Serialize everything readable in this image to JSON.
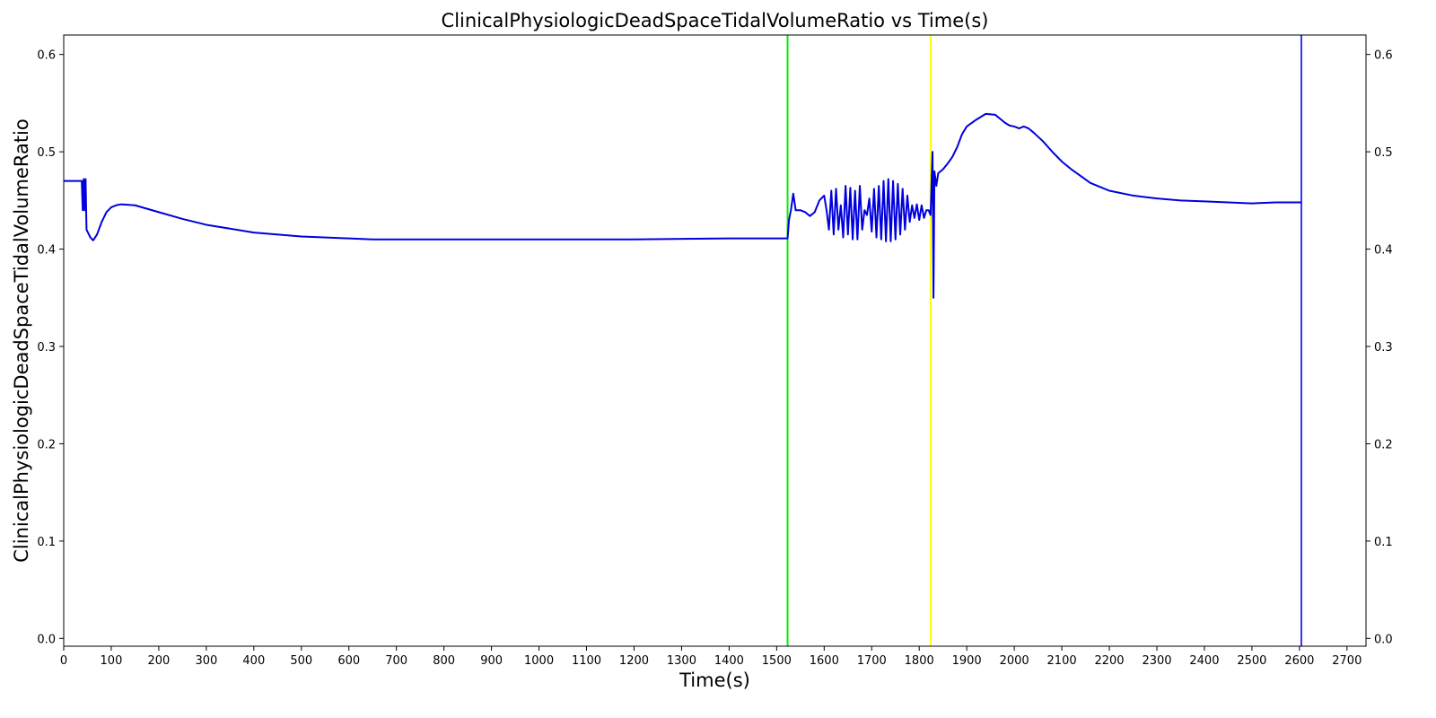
{
  "chart_data": {
    "type": "line",
    "title": "ClinicalPhysiologicDeadSpaceTidalVolumeRatio vs Time(s)",
    "xlabel": "Time(s)",
    "ylabel": "ClinicalPhysiologicDeadSpaceTidalVolumeRatio",
    "xlim": [
      0,
      2740
    ],
    "ylim": [
      -0.008,
      0.62
    ],
    "x_ticks": [
      0,
      100,
      200,
      300,
      400,
      500,
      600,
      700,
      800,
      900,
      1000,
      1100,
      1200,
      1300,
      1400,
      1500,
      1600,
      1700,
      1800,
      1900,
      2000,
      2100,
      2200,
      2300,
      2400,
      2500,
      2600,
      2700
    ],
    "y_ticks": [
      0.0,
      0.1,
      0.2,
      0.3,
      0.4,
      0.5,
      0.6
    ],
    "y_tick_labels": [
      "0.0",
      "0.1",
      "0.2",
      "0.3",
      "0.4",
      "0.5",
      "0.6"
    ],
    "right_axis_mirror": true,
    "grid": false,
    "series_color": "#0000dd",
    "vertical_markers": [
      {
        "x": 1523,
        "color": "#00ee00"
      },
      {
        "x": 1824,
        "color": "#ffff00"
      },
      {
        "x": 2604,
        "color": "#3333ff"
      }
    ],
    "series": [
      {
        "x": [
          0,
          38,
          40,
          42,
          44,
          46,
          48,
          52,
          56,
          62,
          70,
          80,
          90,
          100,
          110,
          120,
          150,
          200,
          250,
          300,
          400,
          500,
          600,
          650,
          800,
          1000,
          1200,
          1400,
          1500,
          1520,
          1523,
          1526,
          1530,
          1535,
          1540,
          1550,
          1560,
          1570,
          1580,
          1590,
          1600,
          1605,
          1610,
          1615,
          1620,
          1625,
          1630,
          1635,
          1640,
          1645,
          1650,
          1655,
          1660,
          1665,
          1670,
          1675,
          1680,
          1685,
          1690,
          1695,
          1700,
          1705,
          1710,
          1715,
          1720,
          1725,
          1730,
          1735,
          1740,
          1745,
          1750,
          1755,
          1760,
          1765,
          1770,
          1775,
          1780,
          1785,
          1790,
          1795,
          1800,
          1805,
          1810,
          1815,
          1820,
          1822,
          1824,
          1826,
          1828,
          1830,
          1832,
          1836,
          1840,
          1850,
          1860,
          1870,
          1880,
          1890,
          1900,
          1920,
          1940,
          1960,
          1970,
          1980,
          1990,
          2000,
          2010,
          2020,
          2030,
          2040,
          2060,
          2080,
          2100,
          2120,
          2140,
          2160,
          2180,
          2200,
          2250,
          2300,
          2350,
          2400,
          2450,
          2500,
          2550,
          2600,
          2604
        ],
        "y": [
          0.47,
          0.47,
          0.44,
          0.472,
          0.44,
          0.472,
          0.42,
          0.416,
          0.412,
          0.409,
          0.415,
          0.428,
          0.438,
          0.443,
          0.445,
          0.446,
          0.445,
          0.438,
          0.431,
          0.425,
          0.417,
          0.413,
          0.411,
          0.41,
          0.41,
          0.41,
          0.41,
          0.411,
          0.411,
          0.411,
          0.411,
          0.43,
          0.44,
          0.457,
          0.44,
          0.44,
          0.438,
          0.434,
          0.438,
          0.45,
          0.455,
          0.44,
          0.42,
          0.46,
          0.415,
          0.462,
          0.42,
          0.445,
          0.412,
          0.465,
          0.415,
          0.463,
          0.41,
          0.46,
          0.41,
          0.465,
          0.42,
          0.44,
          0.435,
          0.452,
          0.418,
          0.462,
          0.412,
          0.465,
          0.41,
          0.47,
          0.408,
          0.472,
          0.408,
          0.47,
          0.41,
          0.467,
          0.415,
          0.462,
          0.42,
          0.455,
          0.428,
          0.445,
          0.432,
          0.446,
          0.43,
          0.445,
          0.432,
          0.44,
          0.44,
          0.437,
          0.435,
          0.47,
          0.5,
          0.35,
          0.48,
          0.465,
          0.478,
          0.482,
          0.488,
          0.495,
          0.505,
          0.518,
          0.526,
          0.533,
          0.539,
          0.538,
          0.534,
          0.53,
          0.527,
          0.526,
          0.524,
          0.526,
          0.524,
          0.52,
          0.511,
          0.5,
          0.49,
          0.482,
          0.475,
          0.468,
          0.464,
          0.46,
          0.455,
          0.452,
          0.45,
          0.449,
          0.448,
          0.447,
          0.448,
          0.448,
          0.448
        ]
      }
    ]
  }
}
